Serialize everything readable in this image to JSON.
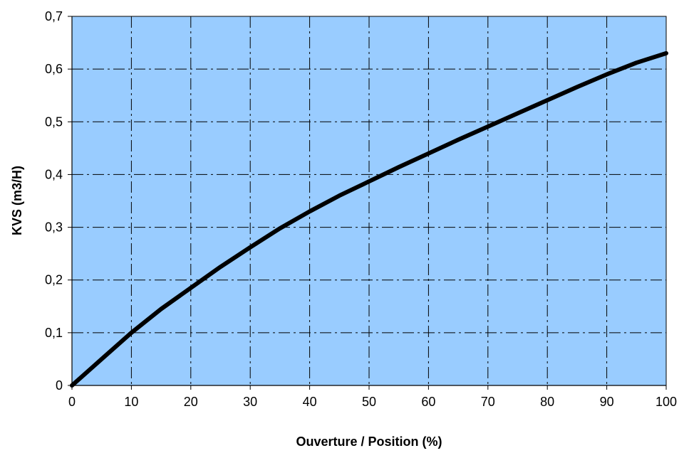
{
  "chart_data": {
    "type": "line",
    "title": "",
    "xlabel": "Ouverture / Position (%)",
    "ylabel": "KVS (m3/H)",
    "xlim": [
      0,
      100
    ],
    "ylim": [
      0,
      0.7
    ],
    "x_ticks": [
      0,
      10,
      20,
      30,
      40,
      50,
      60,
      70,
      80,
      90,
      100
    ],
    "x_tick_labels": [
      "0",
      "10",
      "20",
      "30",
      "40",
      "50",
      "60",
      "70",
      "80",
      "90",
      "100"
    ],
    "y_ticks": [
      0,
      0.1,
      0.2,
      0.3,
      0.4,
      0.5,
      0.6,
      0.7
    ],
    "y_tick_labels": [
      "0",
      "0,1",
      "0,2",
      "0,3",
      "0,4",
      "0,5",
      "0,6",
      "0,7"
    ],
    "grid": true,
    "legend": "none",
    "colors": {
      "plot_background": "#99ccff",
      "line": "#000000",
      "grid": "#000000"
    },
    "series": [
      {
        "x": [
          0,
          5,
          10,
          15,
          20,
          25,
          30,
          35,
          40,
          45,
          50,
          55,
          60,
          65,
          70,
          75,
          80,
          85,
          90,
          95,
          100
        ],
        "values": [
          0,
          0.05,
          0.1,
          0.145,
          0.185,
          0.225,
          0.262,
          0.298,
          0.33,
          0.36,
          0.387,
          0.414,
          0.44,
          0.466,
          0.491,
          0.516,
          0.541,
          0.566,
          0.59,
          0.612,
          0.63
        ]
      }
    ]
  }
}
